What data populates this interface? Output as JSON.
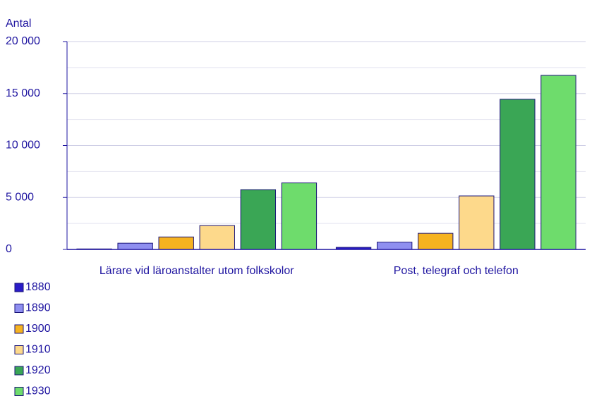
{
  "chart_data": {
    "type": "bar",
    "y_axis_label": "Antal",
    "categories": [
      "Lärare vid läroanstalter utom folkskolor",
      "Post, telegraf och telefon"
    ],
    "series": [
      {
        "name": "1880",
        "color": "#2a1cc8",
        "values": [
          50,
          200
        ]
      },
      {
        "name": "1890",
        "color": "#8f8ff0",
        "values": [
          600,
          700
        ]
      },
      {
        "name": "1900",
        "color": "#f6b320",
        "values": [
          1200,
          1550
        ]
      },
      {
        "name": "1910",
        "color": "#fdd98b",
        "values": [
          2300,
          5150
        ]
      },
      {
        "name": "1920",
        "color": "#3aa655",
        "values": [
          5750,
          14450
        ]
      },
      {
        "name": "1930",
        "color": "#6edc6c",
        "values": [
          6400,
          16750
        ]
      }
    ],
    "ylim": [
      0,
      20000
    ],
    "yticks": [
      {
        "value": 0,
        "label": "0"
      },
      {
        "value": 5000,
        "label": "5 000"
      },
      {
        "value": 10000,
        "label": "10 000"
      },
      {
        "value": 15000,
        "label": "15 000"
      },
      {
        "value": 20000,
        "label": "20 000"
      }
    ],
    "minor_yticks": [
      2500,
      7500,
      12500,
      17500
    ],
    "grid": true,
    "legend": "bottom-left"
  }
}
